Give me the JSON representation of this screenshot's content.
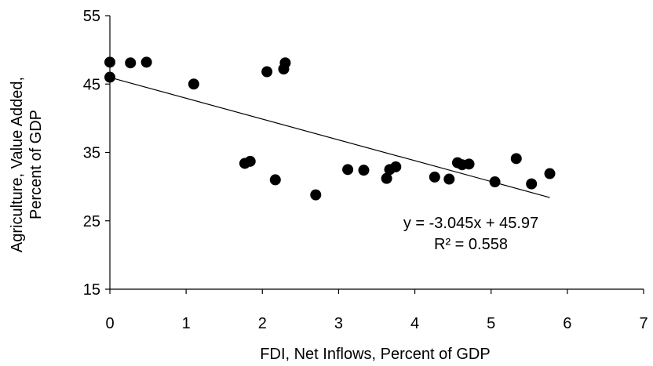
{
  "chart_data": {
    "type": "scatter",
    "title": "",
    "xlabel": "FDI, Net Inflows, Percent of GDP",
    "ylabel_lines": [
      "Agriculture, Value Added,",
      "Percent of GDP"
    ],
    "xlim": [
      0,
      7
    ],
    "ylim": [
      15,
      55
    ],
    "x_ticks": [
      0,
      1,
      2,
      3,
      4,
      5,
      6,
      7
    ],
    "y_ticks": [
      15,
      25,
      35,
      45,
      55
    ],
    "grid": false,
    "legend": "none",
    "marker_color": "#000000",
    "points": [
      {
        "x": 0.0,
        "y": 48.2
      },
      {
        "x": 0.0,
        "y": 46.0
      },
      {
        "x": 0.27,
        "y": 48.1
      },
      {
        "x": 0.48,
        "y": 48.2
      },
      {
        "x": 1.1,
        "y": 45.0
      },
      {
        "x": 1.77,
        "y": 33.4
      },
      {
        "x": 1.84,
        "y": 33.7
      },
      {
        "x": 2.06,
        "y": 46.8
      },
      {
        "x": 2.17,
        "y": 31.0
      },
      {
        "x": 2.28,
        "y": 47.2
      },
      {
        "x": 2.3,
        "y": 48.1
      },
      {
        "x": 2.7,
        "y": 28.8
      },
      {
        "x": 3.12,
        "y": 32.5
      },
      {
        "x": 3.33,
        "y": 32.4
      },
      {
        "x": 3.63,
        "y": 31.2
      },
      {
        "x": 3.67,
        "y": 32.5
      },
      {
        "x": 3.75,
        "y": 32.9
      },
      {
        "x": 4.26,
        "y": 31.4
      },
      {
        "x": 4.45,
        "y": 31.1
      },
      {
        "x": 4.56,
        "y": 33.5
      },
      {
        "x": 4.62,
        "y": 33.2
      },
      {
        "x": 4.71,
        "y": 33.3
      },
      {
        "x": 5.05,
        "y": 30.7
      },
      {
        "x": 5.33,
        "y": 34.1
      },
      {
        "x": 5.53,
        "y": 30.4
      },
      {
        "x": 5.77,
        "y": 31.9
      }
    ],
    "trendline": {
      "slope": -3.045,
      "intercept": 45.97,
      "x_range": [
        0,
        5.77
      ],
      "equation": "y = -3.045x + 45.97",
      "r_squared": "R² = 0.558"
    }
  }
}
